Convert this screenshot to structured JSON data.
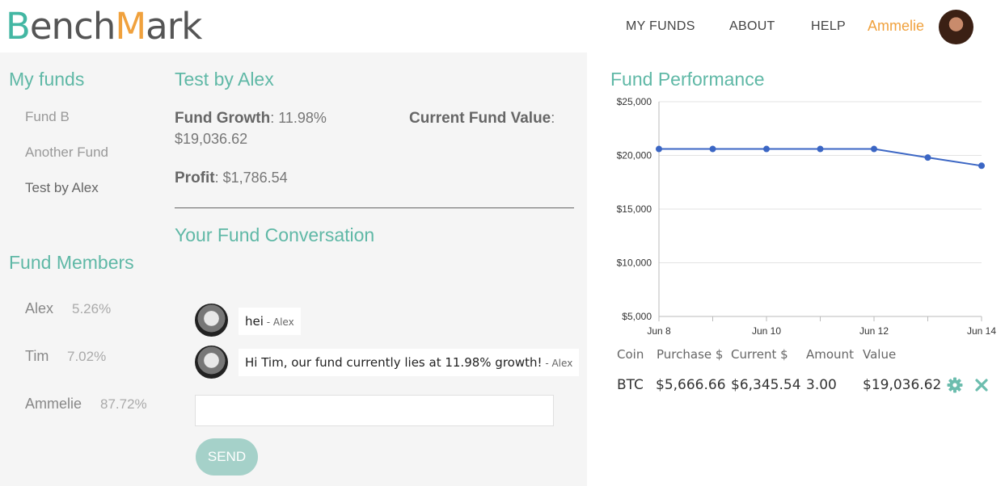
{
  "brand": {
    "part1": "B",
    "part2": "ench",
    "part3": "M",
    "part4": "ark"
  },
  "nav": {
    "my_funds": "MY FUNDS",
    "about": "ABOUT",
    "help": "HELP",
    "user": "Ammelie"
  },
  "sidebar": {
    "funds_title": "My funds",
    "funds": [
      {
        "label": "Fund B"
      },
      {
        "label": "Another Fund"
      },
      {
        "label": "Test by Alex"
      }
    ],
    "members_title": "Fund Members",
    "members": [
      {
        "name": "Alex",
        "pct": "5.26%"
      },
      {
        "name": "Tim",
        "pct": "7.02%"
      },
      {
        "name": "Ammelie",
        "pct": "87.72%"
      }
    ]
  },
  "fund": {
    "title": "Test by Alex",
    "growth_label": "Fund Growth",
    "growth_value": ": 11.98%",
    "current_label": "Current Fund Value",
    "current_colon": ":",
    "current_value": "$19,036.62",
    "profit_label": "Profit",
    "profit_value": ": $1,786.54"
  },
  "conversation": {
    "title": "Your Fund Conversation",
    "messages": [
      {
        "text": "hei",
        "author": " - Alex"
      },
      {
        "text": "Hi Tim, our fund currently lies at 11.98% growth!",
        "author": " - Alex"
      }
    ],
    "input_value": "",
    "send_label": "SEND"
  },
  "performance": {
    "title": "Fund Performance",
    "table": {
      "headers": [
        "Coin",
        "Purchase $",
        "Current $",
        "Amount",
        "Value"
      ],
      "rows": [
        {
          "coin": "BTC",
          "purchase": "$5,666.66",
          "current": "$6,345.54",
          "amount": "3.00",
          "value": "$19,036.62"
        }
      ]
    }
  },
  "colors": {
    "accent": "#5fb8a6",
    "orange": "#f0a13d",
    "line": "#3b66c4"
  },
  "icons": {
    "settings": "gear-icon",
    "delete": "close-icon"
  },
  "chart_data": {
    "type": "line",
    "x": [
      "Jun 8",
      "Jun 9",
      "Jun 10",
      "Jun 11",
      "Jun 12",
      "Jun 13",
      "Jun 14"
    ],
    "x_tick_labels": [
      "Jun 8",
      "Jun 10",
      "Jun 12",
      "Jun 14"
    ],
    "values": [
      20600,
      20600,
      20600,
      20600,
      20600,
      19800,
      19037
    ],
    "y_ticks": [
      "$5,000",
      "$10,000",
      "$15,000",
      "$20,000",
      "$25,000"
    ],
    "ylim": [
      5000,
      25000
    ],
    "grid": true
  }
}
